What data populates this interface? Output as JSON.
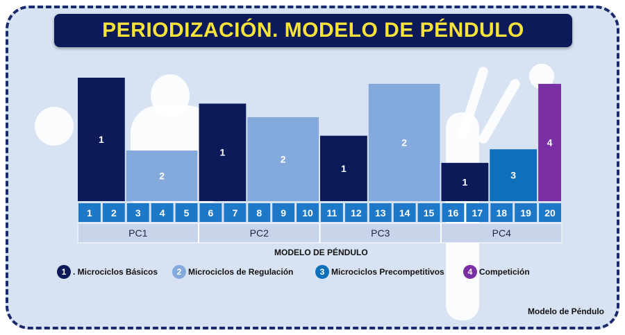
{
  "title": "PERIODIZACIÓN. MODELO DE PÉNDULO",
  "caption": "MODELO DE PÉNDULO",
  "credit": "Modelo de Péndulo",
  "colors": {
    "1": "#0d1a5a",
    "2": "#84a9dc",
    "3": "#0e6fba",
    "4": "#7b2fa4",
    "weeks_bg": "#1e78c8",
    "phase_bg": "#c8d4ea"
  },
  "legend": [
    {
      "num": "1",
      "label": ". Microciclos Básicos",
      "color_key": "1"
    },
    {
      "num": "2",
      "label": "Microciclos de Regulación",
      "color_key": "2"
    },
    {
      "num": "3",
      "label": "Microciclos Precompetitivos",
      "color_key": "3"
    },
    {
      "num": "4",
      "label": "Competición",
      "color_key": "4"
    }
  ],
  "chart_data": {
    "type": "bar",
    "weeks": [
      "1",
      "2",
      "3",
      "4",
      "5",
      "6",
      "7",
      "8",
      "9",
      "10",
      "11",
      "12",
      "13",
      "14",
      "15",
      "16",
      "17",
      "18",
      "19",
      "20"
    ],
    "phases": [
      {
        "label": "PC1",
        "start_week": 1,
        "end_week": 5
      },
      {
        "label": "PC2",
        "start_week": 6,
        "end_week": 10
      },
      {
        "label": "PC3",
        "start_week": 11,
        "end_week": 15
      },
      {
        "label": "PC4",
        "start_week": 16,
        "end_week": 20
      }
    ],
    "blocks": [
      {
        "label": "1",
        "type": "1",
        "start_week": 1,
        "end_week": 2,
        "value": 1.0
      },
      {
        "label": "2",
        "type": "2",
        "start_week": 3,
        "end_week": 5,
        "value": 0.41
      },
      {
        "label": "1",
        "type": "1",
        "start_week": 6,
        "end_week": 7,
        "value": 0.79
      },
      {
        "label": "2",
        "type": "2",
        "start_week": 8,
        "end_week": 10,
        "value": 0.68
      },
      {
        "label": "1",
        "type": "1",
        "start_week": 11,
        "end_week": 12,
        "value": 0.53
      },
      {
        "label": "2",
        "type": "2",
        "start_week": 13,
        "end_week": 15,
        "value": 0.95
      },
      {
        "label": "1",
        "type": "1",
        "start_week": 16,
        "end_week": 17,
        "value": 0.31
      },
      {
        "label": "3",
        "type": "3",
        "start_week": 18,
        "end_week": 19,
        "value": 0.42
      },
      {
        "label": "4",
        "type": "4",
        "start_week": 20,
        "end_week": 20,
        "value": 0.95
      }
    ]
  }
}
